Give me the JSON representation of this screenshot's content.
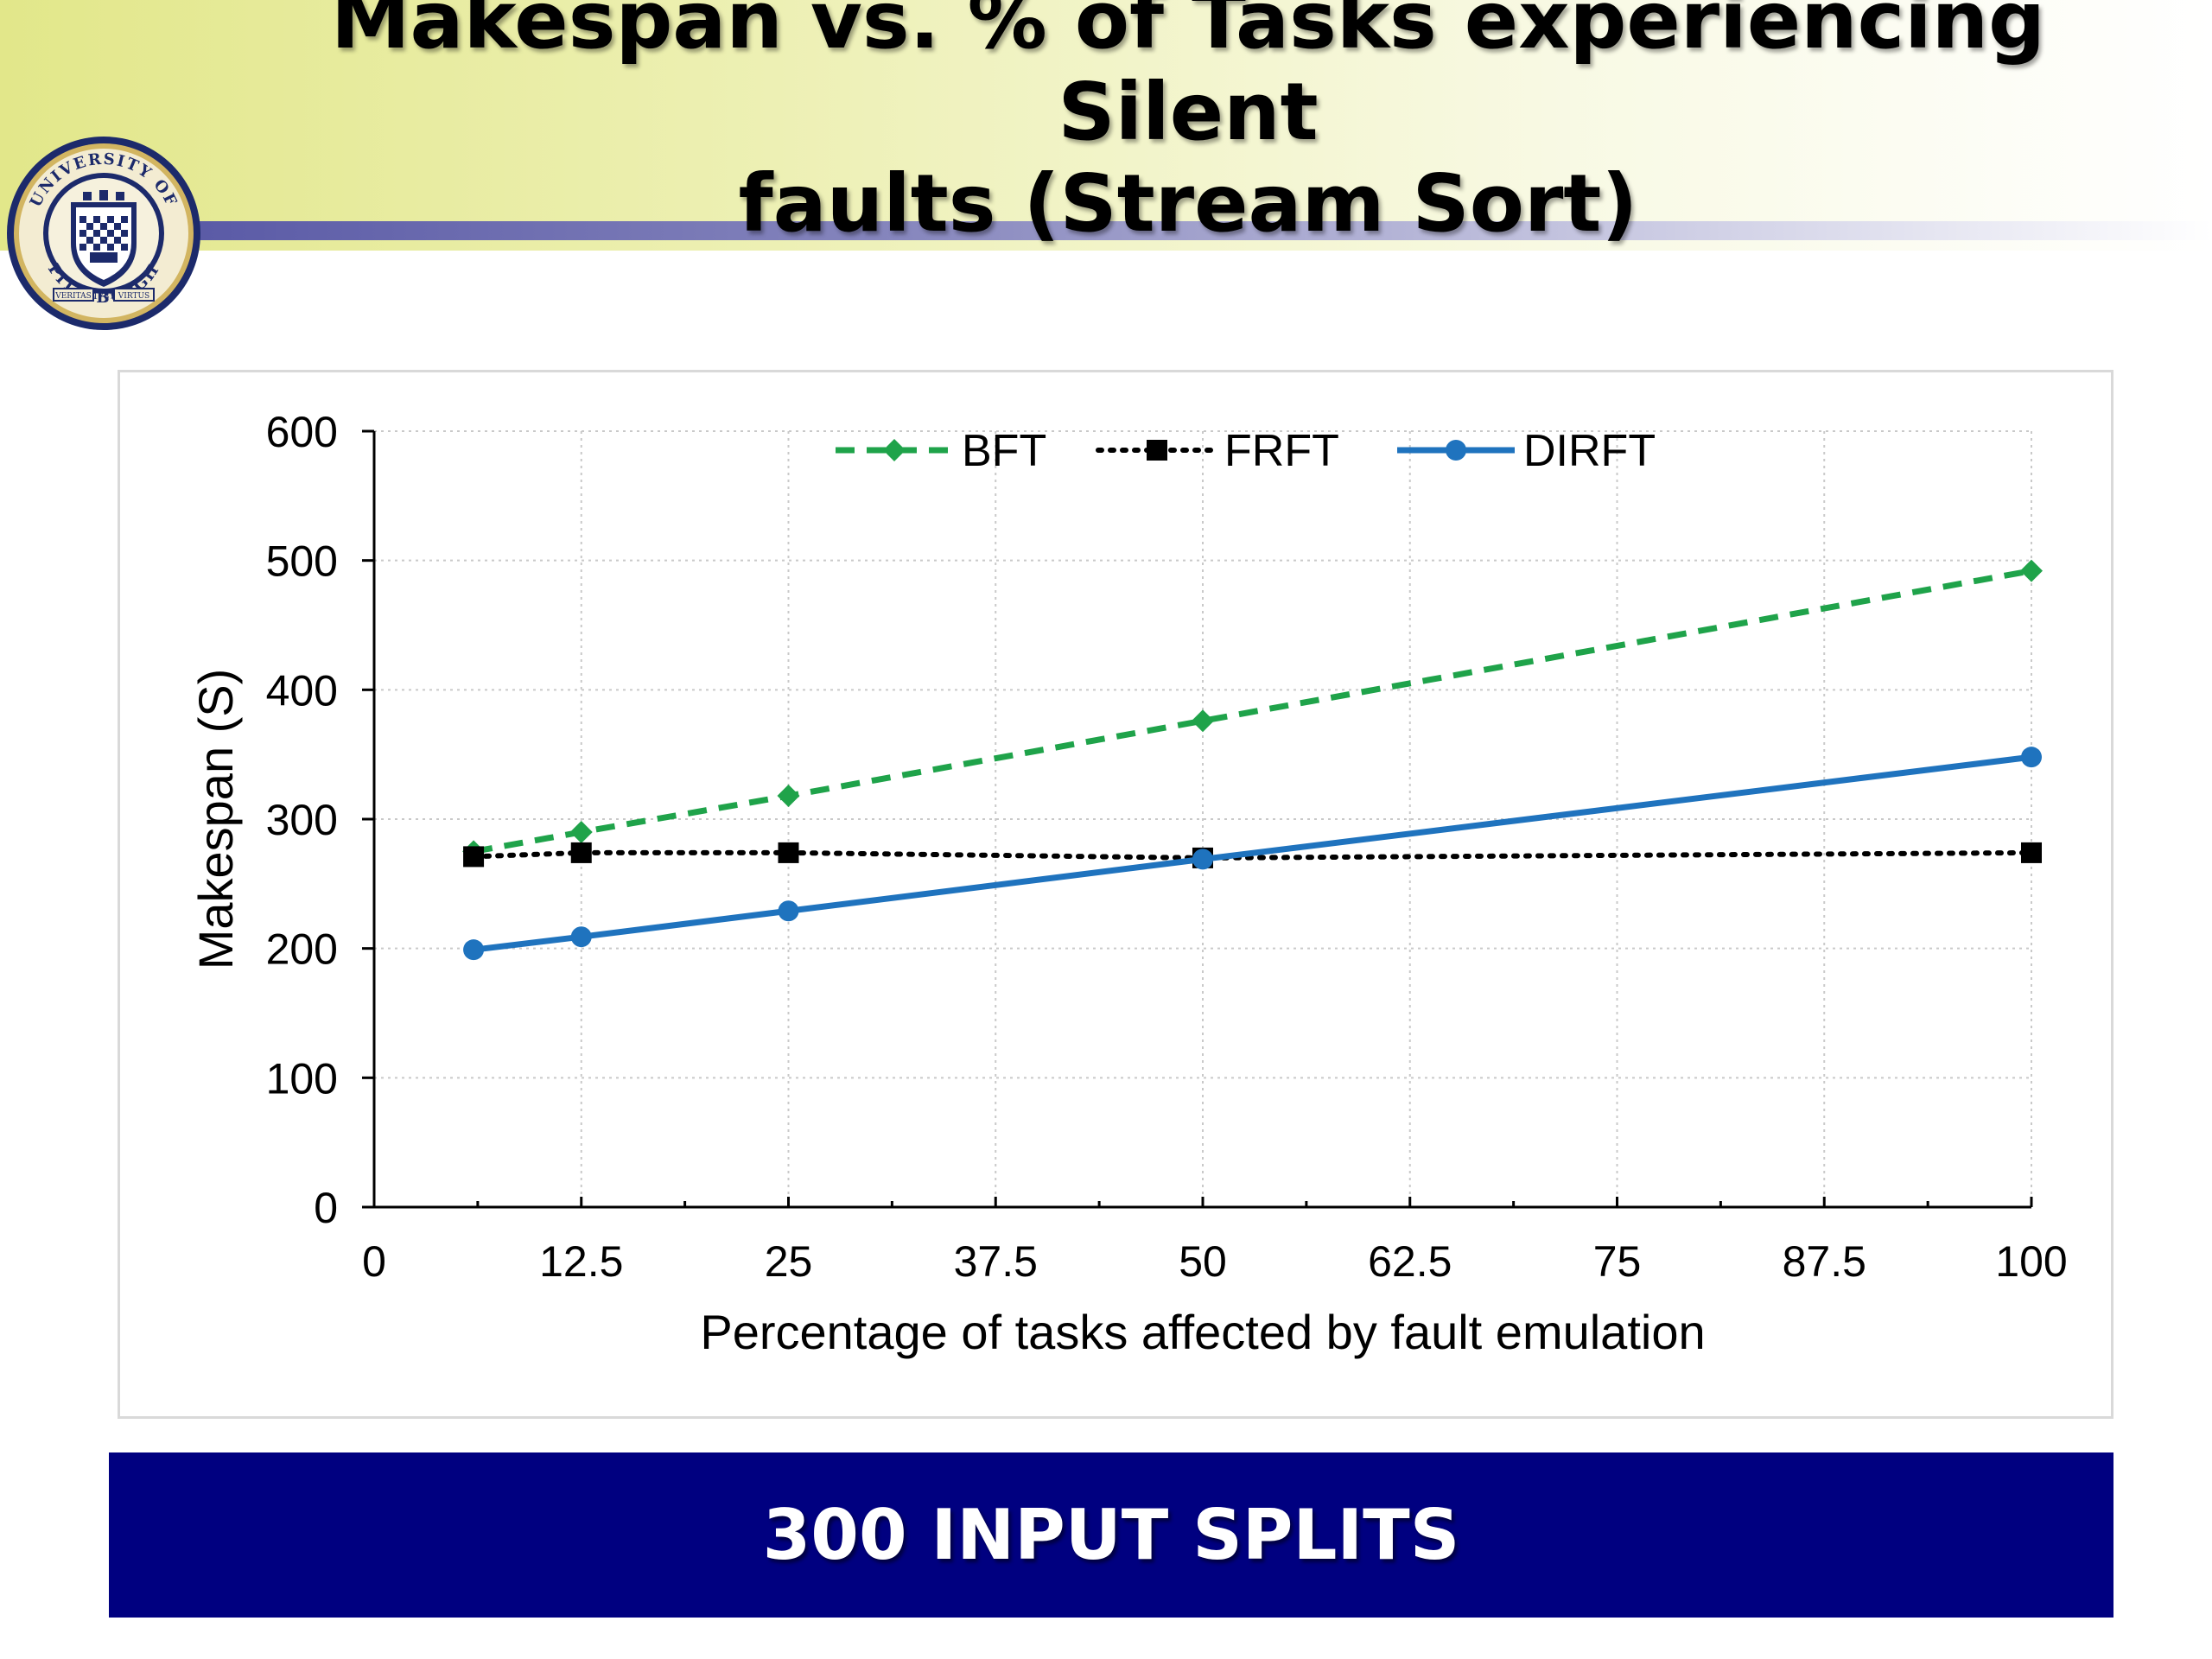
{
  "slide": {
    "title_line1": "Makespan vs. % of Tasks experiencing Silent",
    "title_line2": "faults (Stream Sort)",
    "footer": "300 INPUT SPLITS"
  },
  "logo": {
    "icon": "university-of-pittsburgh-seal-icon",
    "text_top": "UNIVERSITY OF",
    "text_bottom": "PITTSBURGH",
    "motto_left": "VERITAS",
    "motto_year": "1787",
    "motto_right": "VIRTUS",
    "ring_color": "#1c2a6b",
    "gold_color": "#d2b561"
  },
  "chart_data": {
    "type": "line",
    "xlabel": "Percentage of tasks affected by fault emulation",
    "ylabel": "Makespan (S)",
    "xlim": [
      0,
      100
    ],
    "ylim": [
      0,
      600
    ],
    "x_ticks": [
      0,
      12.5,
      25,
      37.5,
      50,
      62.5,
      75,
      87.5,
      100
    ],
    "y_ticks": [
      0,
      100,
      200,
      300,
      400,
      500,
      600
    ],
    "grid": true,
    "legend_position": "top-center",
    "x": [
      6,
      12.5,
      25,
      50,
      100
    ],
    "series": [
      {
        "name": "BFT",
        "values": [
          275,
          290,
          318,
          376,
          492
        ],
        "color": "#1fa34a",
        "line_style": "dashed",
        "marker": "diamond"
      },
      {
        "name": "FRFT",
        "values": [
          271,
          274,
          274,
          270,
          274
        ],
        "color": "#000000",
        "line_style": "dotted",
        "marker": "square"
      },
      {
        "name": "DIRFT",
        "values": [
          199,
          209,
          229,
          269,
          348
        ],
        "color": "#1f73be",
        "line_style": "solid",
        "marker": "circle"
      }
    ]
  }
}
